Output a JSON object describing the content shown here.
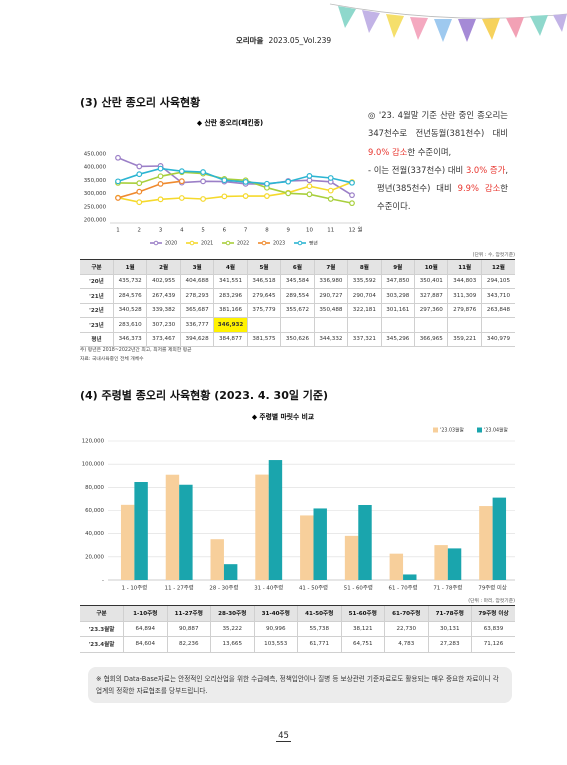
{
  "header": {
    "magazine": "오리마을",
    "issue": "2023.05_Vol.239"
  },
  "section3": {
    "title": "(3) 산란 종오리 사육현황",
    "paragraph": [
      [
        {
          "text": "◎ '23. 4월말 기준 산란 중인 종오리는 347천수로  전년동월(381천수) 대비 "
        },
        {
          "text": "9.0% 감소",
          "color": "#e8352e"
        },
        {
          "text": "한 수준이며,"
        }
      ],
      [
        {
          "text": "- 이는 전월(337천수) 대비 "
        },
        {
          "text": "3.0% 증가",
          "color": "#e8352e"
        },
        {
          "text": ", 평년(385천수) 대비 "
        },
        {
          "text": "9.9% 감소",
          "color": "#e8352e"
        },
        {
          "text": "한 수준이다."
        }
      ]
    ],
    "unit": "(단위 : 수, 암컷기준)",
    "notes": [
      "주) 평년은 2018~2022년간 최고, 최저를 제외한 평균",
      "자료: 국내사육중인 전체 개체수"
    ]
  },
  "table1": {
    "columns": [
      "구분",
      "1월",
      "2월",
      "3월",
      "4월",
      "5월",
      "6월",
      "7월",
      "8월",
      "9월",
      "10월",
      "11월",
      "12월"
    ],
    "rows": [
      [
        "'20년",
        "435,732",
        "402,955",
        "404,688",
        "341,551",
        "346,518",
        "345,584",
        "336,980",
        "335,592",
        "347,850",
        "350,401",
        "344,803",
        "294,105"
      ],
      [
        "'21년",
        "284,576",
        "267,439",
        "278,293",
        "283,296",
        "279,645",
        "289,554",
        "290,727",
        "290,704",
        "303,298",
        "327,887",
        "311,309",
        "343,710"
      ],
      [
        "'22년",
        "340,528",
        "339,382",
        "365,687",
        "381,166",
        "375,779",
        "355,672",
        "350,488",
        "322,181",
        "301,161",
        "297,360",
        "279,876",
        "263,848"
      ],
      [
        "'23년",
        "283,610",
        "307,230",
        "336,777",
        "346,932",
        "",
        "",
        "",
        "",
        "",
        "",
        "",
        ""
      ],
      [
        "평년",
        "346,373",
        "373,467",
        "394,628",
        "384,877",
        "381,575",
        "350,626",
        "344,332",
        "337,321",
        "345,296",
        "366,965",
        "359,221",
        "340,979"
      ]
    ]
  },
  "section4": {
    "title": "(4) 주령별 종오리 사육현황 (2023. 4. 30일 기준)",
    "unit": "(단위 : 마리, 암컷기준)"
  },
  "table2": {
    "columns": [
      "구분",
      "1-10주령",
      "11-27주령",
      "28-30주령",
      "31-40주령",
      "41-50주령",
      "51-60주령",
      "61-70주령",
      "71-78주령",
      "79주령 이상"
    ],
    "rows": [
      [
        "'23.3월말",
        "64,894",
        "90,887",
        "35,222",
        "90,996",
        "55,738",
        "38,121",
        "22,730",
        "30,131",
        "63,839"
      ],
      [
        "'23.4월말",
        "84,604",
        "82,236",
        "13,665",
        "103,553",
        "61,771",
        "64,751",
        "4,783",
        "27,283",
        "71,126"
      ]
    ]
  },
  "footnote": "※ 협회의 Data-Base자료는 안정적인 오리산업을 위한 수급예측, 정책입안이나 질병 등 보상관련 기준자료로도 활용되는 매우 중요한 자료이니 각 업계의 정확한 자료협조를 당부드립니다.",
  "page_number": "45",
  "chart_data": [
    {
      "type": "line",
      "title": "◆ 산란 종오리(패킨종)",
      "categories": [
        "1",
        "2",
        "3",
        "4",
        "5",
        "6",
        "7",
        "8",
        "9",
        "10",
        "11",
        "12"
      ],
      "x_label": "월",
      "ylim": [
        200000,
        450000
      ],
      "yticks": [
        {
          "value": 200000,
          "label": "200,000"
        },
        {
          "value": 250000,
          "label": "250,000"
        },
        {
          "value": 300000,
          "label": "300,000"
        },
        {
          "value": 350000,
          "label": "350,000"
        },
        {
          "value": 400000,
          "label": "400,000"
        },
        {
          "value": 450000,
          "label": "450,000"
        }
      ],
      "grid": false,
      "legend": "bottom",
      "series": [
        {
          "name": "2020",
          "color": "#9b7fc7",
          "values": [
            435732,
            402955,
            404688,
            341551,
            346518,
            345584,
            336980,
            335592,
            347850,
            350401,
            344803,
            294105
          ]
        },
        {
          "name": "2021",
          "color": "#f5d92c",
          "values": [
            284576,
            267439,
            278293,
            283296,
            279645,
            289554,
            290727,
            290704,
            303298,
            327887,
            311309,
            343710
          ]
        },
        {
          "name": "2022",
          "color": "#a8cf3c",
          "values": [
            340528,
            339382,
            365687,
            381166,
            375779,
            355672,
            350488,
            322181,
            301161,
            297360,
            279876,
            263848
          ]
        },
        {
          "name": "2023",
          "color": "#ef8a2e",
          "values": [
            283610,
            307230,
            336777,
            346932,
            null,
            null,
            null,
            null,
            null,
            null,
            null,
            null
          ]
        },
        {
          "name": "평년",
          "color": "#2cb5d2",
          "values": [
            346373,
            373467,
            394628,
            384877,
            381575,
            350626,
            344332,
            337321,
            345296,
            366965,
            359221,
            340979
          ]
        }
      ]
    },
    {
      "type": "bar",
      "title": "◆ 주령별 마릿수 비교",
      "categories": [
        "1 - 10주령",
        "11 - 27주령",
        "28 - 30주령",
        "31 - 40주령",
        "41 - 50주령",
        "51 - 60주령",
        "61 - 70주령",
        "71 - 78주령",
        "79주령 이상"
      ],
      "ylim": [
        0,
        120000
      ],
      "yticks": [
        {
          "value": 0,
          "label": "-"
        },
        {
          "value": 20000,
          "label": "20,000"
        },
        {
          "value": 40000,
          "label": "40,000"
        },
        {
          "value": 60000,
          "label": "60,000"
        },
        {
          "value": 80000,
          "label": "80,000"
        },
        {
          "value": 100000,
          "label": "100,000"
        },
        {
          "value": 120000,
          "label": "120,000"
        }
      ],
      "grid": true,
      "legend": "top-right",
      "series": [
        {
          "name": "'23.03월말",
          "color": "#f7cf9b",
          "values": [
            64894,
            90887,
            35222,
            90996,
            55738,
            38121,
            22730,
            30131,
            63839
          ]
        },
        {
          "name": "'23.04월말",
          "color": "#1aa5ad",
          "values": [
            84604,
            82236,
            13665,
            103553,
            61771,
            64751,
            4783,
            27283,
            71126
          ]
        }
      ]
    }
  ]
}
